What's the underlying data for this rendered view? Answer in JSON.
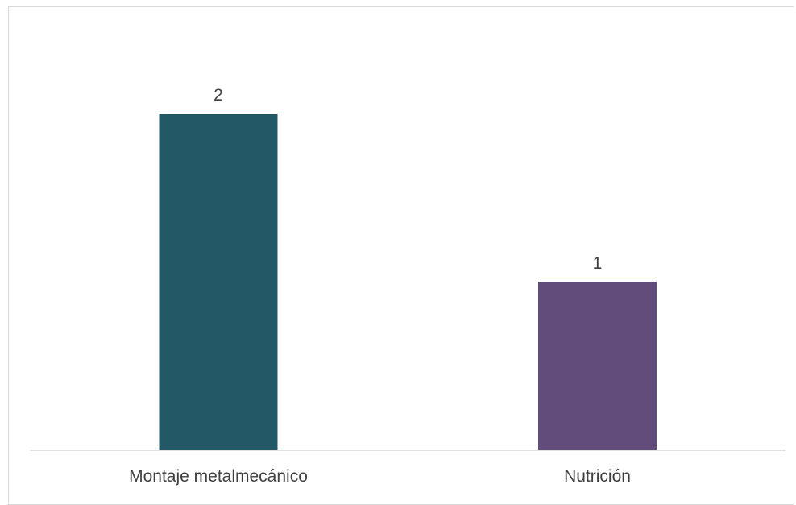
{
  "chart_data": {
    "type": "bar",
    "categories": [
      "Montaje metalmecánico",
      "Nutrición"
    ],
    "values": [
      2,
      1
    ],
    "colors": [
      "#235967",
      "#614c7c"
    ],
    "data_labels": [
      "2",
      "1"
    ],
    "ylim": [
      0,
      2.4
    ],
    "grid": false,
    "legend": "none",
    "axis_color": "#d9d9d9"
  }
}
